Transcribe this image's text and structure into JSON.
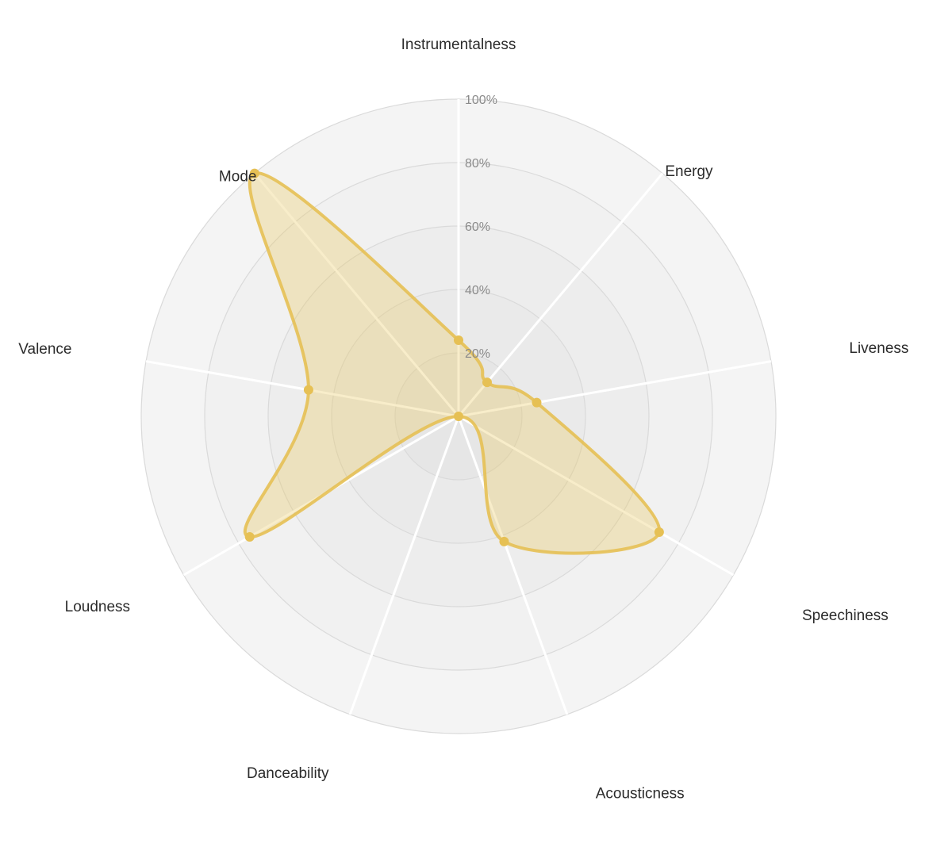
{
  "chart_data": {
    "type": "radar",
    "categories": [
      "Instrumentalness",
      "Energy",
      "Liveness",
      "Speechiness",
      "Acousticness",
      "Danceability",
      "Loudness",
      "Valence",
      "Mode"
    ],
    "series": [
      {
        "values": [
          0.24,
          0.14,
          0.25,
          0.73,
          0.42,
          0.0,
          0.76,
          0.48,
          1.0
        ]
      }
    ],
    "radial_ticks": [
      "20%",
      "40%",
      "60%",
      "80%",
      "100%"
    ],
    "rlim": [
      0,
      1
    ],
    "colors": {
      "series_fill": "#e8c65a",
      "series_stroke": "#e6c054",
      "ring_outer": "#f4f4f4",
      "ring_inner": "#e6e6e6",
      "ring_line": "#dadada",
      "spoke": "#ffffff"
    }
  }
}
